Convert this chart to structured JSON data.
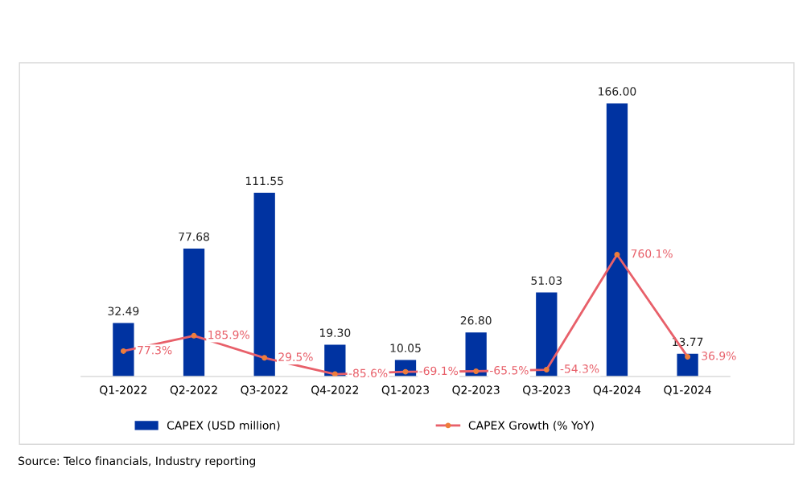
{
  "chart_data": {
    "type": "bar",
    "categories": [
      "Q1-2022",
      "Q2-2022",
      "Q3-2022",
      "Q4-2022",
      "Q1-2023",
      "Q2-2023",
      "Q3-2023",
      "Q4-2024",
      "Q1-2024"
    ],
    "series": [
      {
        "name": "CAPEX (USD million)",
        "color": "#0033a1",
        "values": [
          32.49,
          77.68,
          111.55,
          19.3,
          10.05,
          26.8,
          51.03,
          166.0,
          13.77
        ],
        "value_labels": [
          "32.49",
          "77.68",
          "111.55",
          "19.30",
          "10.05",
          "26.80",
          "51.03",
          "166.00",
          "13.77"
        ]
      },
      {
        "name": "CAPEX Growth (% YoY)",
        "type": "line",
        "axis": "y2",
        "color": "#e8606a",
        "marker": "circle",
        "values": [
          77.3,
          185.9,
          29.5,
          -85.6,
          -69.1,
          -65.5,
          -54.3,
          760.1,
          36.9
        ],
        "value_labels": [
          "77.3%",
          "185.9%",
          "29.5%",
          "-85.6%",
          "-69.1%",
          "-65.5%",
          "-54.3%",
          "760.1%",
          "36.9%"
        ]
      }
    ],
    "tick_labels": "x",
    "grid": false,
    "legend": "bottom",
    "annotations": [
      "Source: Telco financials, Industry reporting"
    ]
  }
}
